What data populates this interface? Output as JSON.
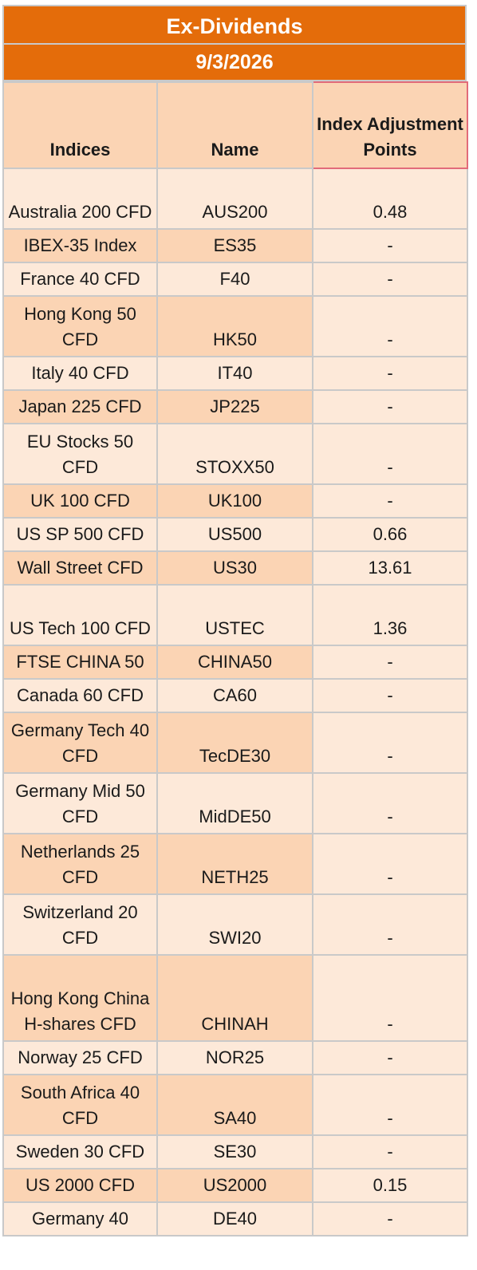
{
  "title": "Ex-Dividends",
  "date": "9/3/2026",
  "columns": {
    "indices": "Indices",
    "name": "Name",
    "points": "Index Adjustment Points"
  },
  "rows": [
    {
      "index": "Australia 200 CFD",
      "name": "AUS200",
      "points": "0.48"
    },
    {
      "index": "IBEX-35 Index",
      "name": "ES35",
      "points": "-"
    },
    {
      "index": "France 40 CFD",
      "name": "F40",
      "points": "-"
    },
    {
      "index": "Hong Kong 50 CFD",
      "name": "HK50",
      "points": "-"
    },
    {
      "index": "Italy 40 CFD",
      "name": "IT40",
      "points": "-"
    },
    {
      "index": "Japan 225 CFD",
      "name": "JP225",
      "points": "-"
    },
    {
      "index": "EU Stocks 50 CFD",
      "name": "STOXX50",
      "points": "-"
    },
    {
      "index": "UK 100 CFD",
      "name": "UK100",
      "points": "-"
    },
    {
      "index": "US SP 500 CFD",
      "name": "US500",
      "points": "0.66"
    },
    {
      "index": "Wall Street CFD",
      "name": "US30",
      "points": "13.61"
    },
    {
      "index": "US Tech 100 CFD",
      "name": "USTEC",
      "points": "1.36"
    },
    {
      "index": "FTSE CHINA 50",
      "name": "CHINA50",
      "points": "-"
    },
    {
      "index": "Canada 60 CFD",
      "name": "CA60",
      "points": "-"
    },
    {
      "index": "Germany Tech 40 CFD",
      "name": "TecDE30",
      "points": "-"
    },
    {
      "index": "Germany Mid 50 CFD",
      "name": "MidDE50",
      "points": "-"
    },
    {
      "index": "Netherlands 25 CFD",
      "name": "NETH25",
      "points": "-"
    },
    {
      "index": "Switzerland 20 CFD",
      "name": "SWI20",
      "points": "-"
    },
    {
      "index": "Hong Kong China H-shares CFD",
      "name": "CHINAH",
      "points": "-"
    },
    {
      "index": "Norway 25 CFD",
      "name": "NOR25",
      "points": "-"
    },
    {
      "index": "South Africa 40 CFD",
      "name": "SA40",
      "points": "-"
    },
    {
      "index": "Sweden 30 CFD",
      "name": "SE30",
      "points": "-"
    },
    {
      "index": "US 2000 CFD",
      "name": "US2000",
      "points": "0.15"
    },
    {
      "index": "Germany 40",
      "name": "DE40",
      "points": "-"
    }
  ],
  "colors": {
    "header_orange": "#e46c0a",
    "row_light": "#fde9d9",
    "row_dark": "#fbd4b4",
    "grid": "#c9c9c9"
  }
}
